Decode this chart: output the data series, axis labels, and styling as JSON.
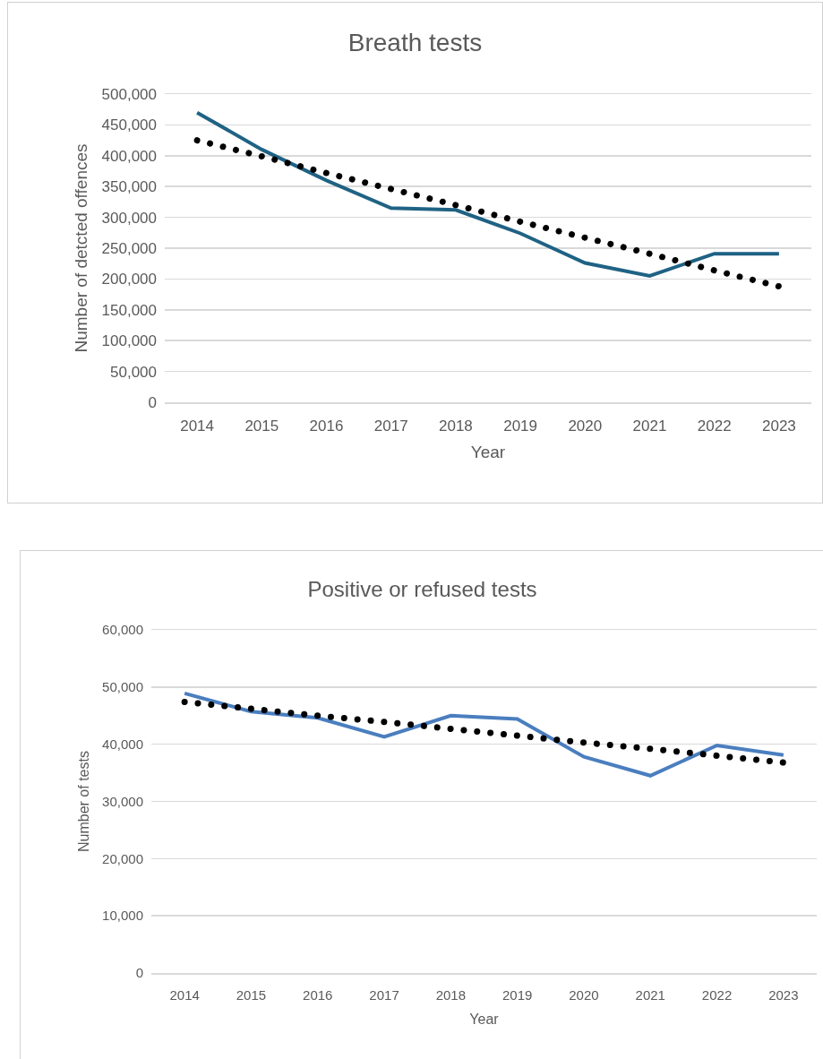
{
  "chart_data": [
    {
      "type": "line",
      "title": "Breath tests",
      "xlabel": "Year",
      "ylabel": "Number of detcted offences",
      "x": [
        2014,
        2015,
        2016,
        2017,
        2018,
        2019,
        2020,
        2021,
        2022,
        2023
      ],
      "xlim": [
        2013.5,
        2023.5
      ],
      "xticks": [
        2014,
        2015,
        2016,
        2017,
        2018,
        2019,
        2020,
        2021,
        2022,
        2023
      ],
      "ylim": [
        0,
        500000
      ],
      "yticks": [
        {
          "value": 0,
          "label": "0"
        },
        {
          "value": 50000,
          "label": "50,000"
        },
        {
          "value": 100000,
          "label": "100,000"
        },
        {
          "value": 150000,
          "label": "150,000"
        },
        {
          "value": 200000,
          "label": "200,000"
        },
        {
          "value": 250000,
          "label": "250,000"
        },
        {
          "value": 300000,
          "label": "300,000"
        },
        {
          "value": 350000,
          "label": "350,000"
        },
        {
          "value": 400000,
          "label": "400,000"
        },
        {
          "value": 450000,
          "label": "450,000"
        },
        {
          "value": 500000,
          "label": "500,000"
        }
      ],
      "grid": "y",
      "series": [
        {
          "color": "#1f6284",
          "line_style": "solid",
          "values": [
            470000,
            410000,
            360000,
            315000,
            312000,
            274000,
            226000,
            205000,
            241000,
            241000
          ]
        },
        {
          "type": "line",
          "color": "#000000",
          "line_style": "dotted",
          "values": [
            425000,
            399000,
            372000,
            346000,
            320000,
            293000,
            267000,
            241000,
            214000,
            188000
          ]
        }
      ]
    },
    {
      "type": "line",
      "title": "Positive or refused tests",
      "xlabel": "Year",
      "ylabel": "Number of tests",
      "x": [
        2014,
        2015,
        2016,
        2017,
        2018,
        2019,
        2020,
        2021,
        2022,
        2023
      ],
      "xlim": [
        2013.5,
        2023.5
      ],
      "xticks": [
        2014,
        2015,
        2016,
        2017,
        2018,
        2019,
        2020,
        2021,
        2022,
        2023
      ],
      "ylim": [
        0,
        60000
      ],
      "yticks": [
        {
          "value": 0,
          "label": "0"
        },
        {
          "value": 10000,
          "label": "10,000"
        },
        {
          "value": 20000,
          "label": "20,000"
        },
        {
          "value": 30000,
          "label": "30,000"
        },
        {
          "value": 40000,
          "label": "40,000"
        },
        {
          "value": 50000,
          "label": "50,000"
        },
        {
          "value": 60000,
          "label": "60,000"
        }
      ],
      "grid": "y",
      "series": [
        {
          "color": "#4a7ebf",
          "line_style": "solid",
          "values": [
            48900,
            45700,
            44600,
            41300,
            45000,
            44400,
            37800,
            34500,
            39800,
            38100
          ]
        },
        {
          "type": "line",
          "color": "#000000",
          "line_style": "dotted",
          "values": [
            47400,
            46200,
            45000,
            43900,
            42700,
            41500,
            40300,
            39200,
            38000,
            36800
          ]
        }
      ]
    }
  ]
}
